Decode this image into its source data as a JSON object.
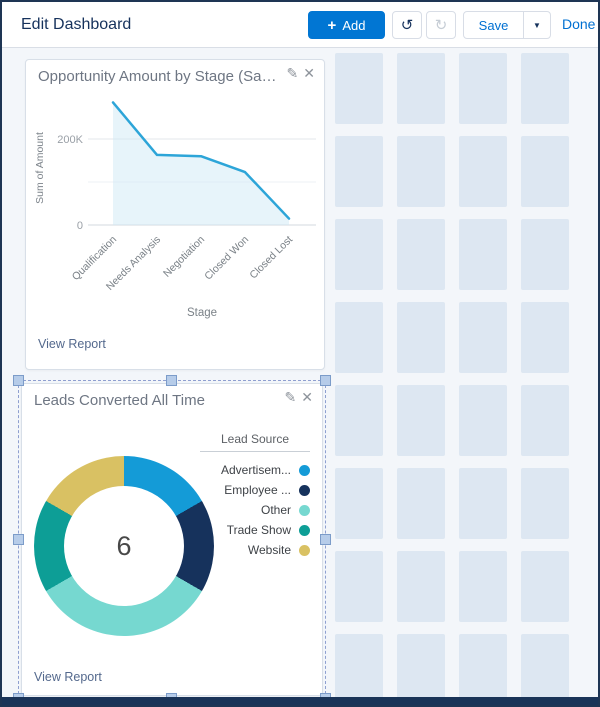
{
  "header": {
    "title": "Edit Dashboard",
    "add_plus": "+",
    "add_label": "Add",
    "undo_icon": "↺",
    "redo_icon": "↻",
    "save_label": "Save",
    "dropdown_icon": "▼",
    "done_label": "Done"
  },
  "widget_opportunity": {
    "title": "Opportunity Amount by Stage (Sam...",
    "edit_icon": "✎",
    "close_icon": "✕",
    "view_report": "View Report"
  },
  "widget_leads": {
    "title": "Leads Converted All Time",
    "edit_icon": "✎",
    "close_icon": "✕",
    "legend_title": "Lead Source",
    "center_total": "6",
    "view_report": "View Report"
  },
  "colors": {
    "accent_blue": "#0176d3",
    "link_blue": "#0070d2",
    "title_navy": "#16325c",
    "canvas_bg": "#f3f6fa",
    "grid_cell": "#dde7f2",
    "line_stroke": "#2da5d8",
    "area_fill": "#cfe9f6",
    "selection_dash": "#8f9fd0"
  },
  "chart_data": [
    {
      "type": "area",
      "title": "Opportunity Amount by Stage (Sam...",
      "categories": [
        "Qualification",
        "Needs Analysis",
        "Negotiation",
        "Closed Won",
        "Closed Lost"
      ],
      "values": [
        285000,
        163000,
        160000,
        123000,
        15000
      ],
      "xlabel": "Stage",
      "ylabel": "Sum of Amount",
      "yticks": [
        {
          "value": 200000,
          "label": "200K"
        },
        {
          "value": 0,
          "label": "0"
        }
      ],
      "ylim": [
        0,
        310000
      ],
      "grid": true,
      "legend": false
    },
    {
      "type": "pie",
      "title": "Leads Converted All Time",
      "legend_title": "Lead Source",
      "legend_position": "right",
      "center_label": "6",
      "categories": [
        "Advertisem...",
        "Employee ...",
        "Other",
        "Trade Show",
        "Website"
      ],
      "values": [
        1,
        1,
        2,
        1,
        1
      ],
      "colors": [
        "#149bd7",
        "#16325c",
        "#76d8d0",
        "#0d9e96",
        "#d9c163"
      ]
    }
  ]
}
